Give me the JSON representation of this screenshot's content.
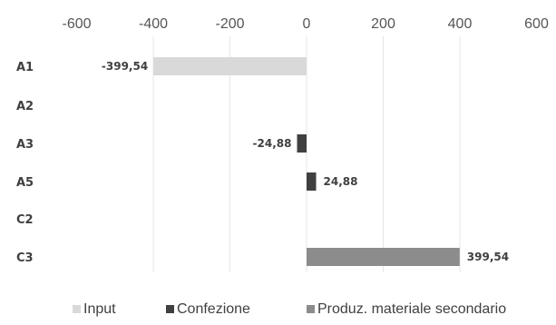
{
  "chart_data": {
    "type": "bar",
    "orientation": "horizontal",
    "categories": [
      "A1",
      "A2",
      "A3",
      "A5",
      "C2",
      "C3"
    ],
    "series": [
      {
        "name": "Input",
        "color": "#d9d9d9",
        "values": [
          -399.54,
          0,
          0,
          0,
          0,
          0
        ]
      },
      {
        "name": "Confezione",
        "color": "#404040",
        "values": [
          0,
          0,
          -24.88,
          24.88,
          0,
          0
        ]
      },
      {
        "name": "Produz. materiale secondario",
        "color": "#8c8c8c",
        "values": [
          0,
          0,
          0,
          0,
          0,
          399.54
        ]
      }
    ],
    "data_labels": [
      "-399,54",
      "",
      "-24,88",
      "24,88",
      "",
      "399,54"
    ],
    "xlim": [
      -600,
      600
    ],
    "xticks": [
      "-600",
      "-400",
      "-200",
      "0",
      "200",
      "400",
      "600"
    ],
    "xaxis_position": "top",
    "grid": true,
    "legend": "bottom"
  }
}
